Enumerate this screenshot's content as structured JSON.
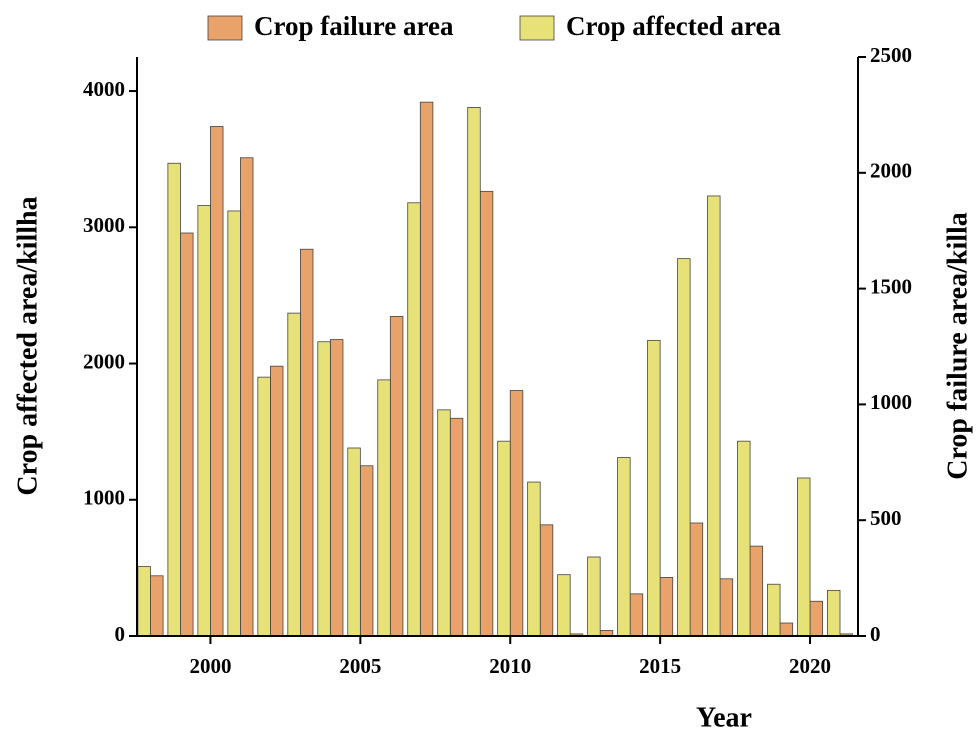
{
  "chart_data": {
    "type": "bar",
    "x_label": "Year",
    "y_label": "Crop affected area/killha",
    "y2_label": "Crop failure area/killa",
    "x": [
      1998,
      1999,
      2000,
      2001,
      2002,
      2003,
      2004,
      2005,
      2006,
      2007,
      2008,
      2009,
      2010,
      2011,
      2012,
      2013,
      2014,
      2015,
      2016,
      2017,
      2018,
      2019,
      2020,
      2021
    ],
    "series": [
      {
        "name": "Crop failure area",
        "color": "#eaa26b",
        "axis": "y2",
        "values": [
          260,
          1740,
          2200,
          2065,
          1165,
          1670,
          1280,
          735,
          1380,
          2305,
          940,
          1920,
          1060,
          480,
          9,
          24,
          182,
          253,
          488,
          247,
          388,
          56,
          150,
          9
        ]
      },
      {
        "name": "Crop affected area",
        "color": "#e7e277",
        "axis": "y",
        "values": [
          510,
          3470,
          3160,
          3120,
          1900,
          2370,
          2160,
          1380,
          1880,
          3180,
          1660,
          3880,
          1430,
          1130,
          450,
          580,
          1310,
          2170,
          2770,
          3230,
          1430,
          380,
          1160,
          335
        ]
      }
    ],
    "xlim": [
      1997.55,
      2021.6
    ],
    "xticks": [
      2000,
      2005,
      2010,
      2015,
      2020
    ],
    "ylim": [
      0,
      4250
    ],
    "yticks": [
      0,
      1000,
      2000,
      3000,
      4000
    ],
    "y2lim": [
      0,
      2500
    ],
    "y2ticks": [
      0,
      500,
      1000,
      1500,
      2000,
      2500
    ],
    "legend": "top"
  }
}
